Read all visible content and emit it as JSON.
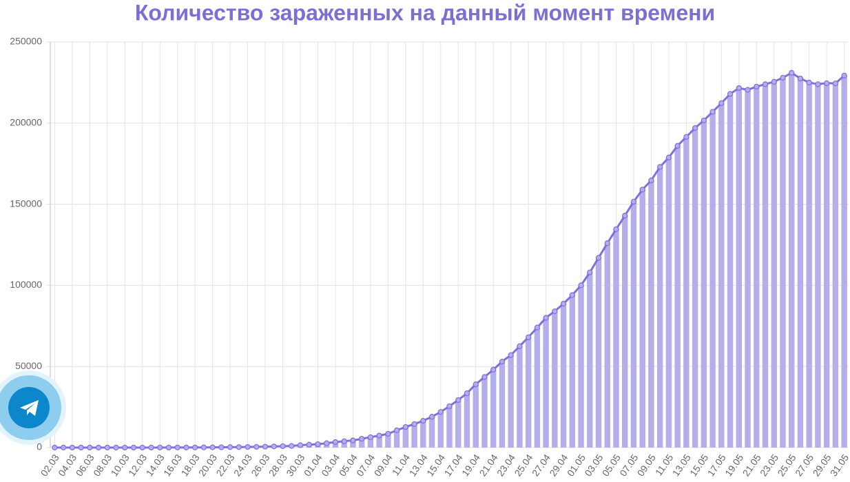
{
  "chart_data": {
    "type": "bar",
    "title": "Количество зараженных на данный момент времени",
    "categories": [
      "02.03",
      null,
      "04.03",
      null,
      "06.03",
      null,
      "08.03",
      null,
      "10.03",
      null,
      "12.03",
      null,
      "14.03",
      null,
      "16.03",
      null,
      "18.03",
      null,
      "20.03",
      null,
      "22.03",
      null,
      "24.03",
      null,
      "26.03",
      null,
      "28.03",
      null,
      "30.03",
      null,
      "01.04",
      null,
      "03.04",
      null,
      "05.04",
      null,
      "07.04",
      null,
      "09.04",
      null,
      "11.04",
      null,
      "13.04",
      null,
      "15.04",
      null,
      "17.04",
      null,
      "19.04",
      null,
      "21.04",
      null,
      "23.04",
      null,
      "25.04",
      null,
      "27.04",
      null,
      "29.04",
      null,
      "01.05",
      null,
      "03.05",
      null,
      "05.05",
      null,
      "07.05",
      null,
      "09.05",
      null,
      "11.05",
      null,
      "13.05",
      null,
      "15.05",
      null,
      "17.05",
      null,
      "19.05",
      null,
      "21.05",
      null,
      "23.05",
      null,
      "25.05",
      null,
      "27.05",
      null,
      "29.05",
      null,
      "31.05"
    ],
    "values": [
      3,
      3,
      3,
      3,
      3,
      4,
      4,
      5,
      6,
      7,
      10,
      14,
      20,
      25,
      40,
      55,
      75,
      100,
      150,
      190,
      250,
      300,
      380,
      450,
      560,
      690,
      850,
      1000,
      1500,
      1800,
      2100,
      2700,
      3400,
      3900,
      4400,
      5400,
      6400,
      7400,
      8500,
      10600,
      12700,
      14500,
      16500,
      19000,
      22000,
      25500,
      29300,
      33500,
      39000,
      43500,
      48000,
      53000,
      57000,
      62500,
      68000,
      74000,
      80000,
      84000,
      88700,
      94000,
      100000,
      108000,
      117000,
      126000,
      134600,
      143000,
      151600,
      159000,
      164700,
      173000,
      178800,
      186000,
      191500,
      197000,
      201700,
      207000,
      212300,
      218000,
      221600,
      220500,
      222500,
      224000,
      225500,
      228000,
      231000,
      227500,
      225000,
      224000,
      224600,
      224500,
      229300
    ],
    "color": "#b4aeeb",
    "line_color": "#7d6fdc",
    "show_line": true,
    "ylim": [
      0,
      250000
    ],
    "yticks": [
      0,
      50000,
      100000,
      150000,
      200000,
      250000
    ],
    "grid": true
  }
}
